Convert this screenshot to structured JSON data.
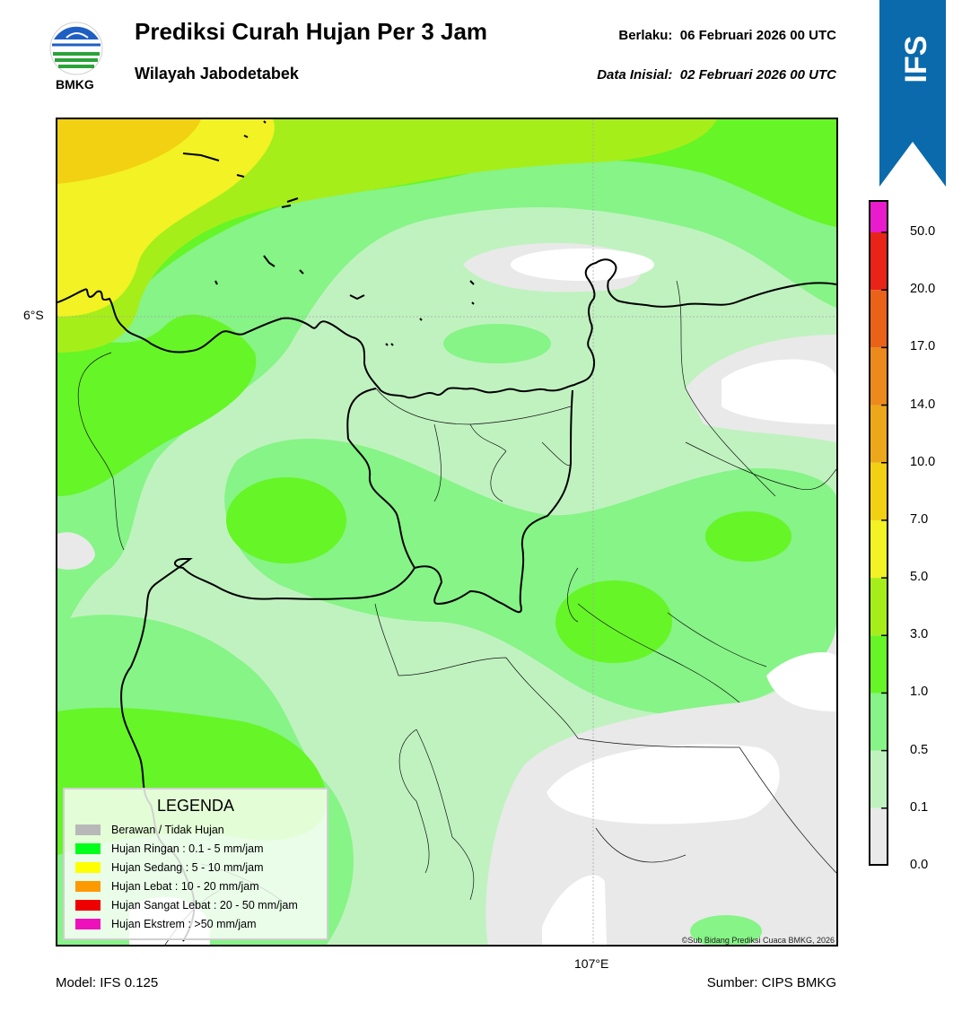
{
  "header": {
    "logo_text": "BMKG",
    "title": "Prediksi Curah Hujan Per 3 Jam",
    "subtitle": "Wilayah Jabodetabek",
    "valid_label": "Berlaku:",
    "valid_value": "06 Februari 2026 00 UTC",
    "initial_label": "Data Inisial:",
    "initial_value": "02 Februari 2026 00 UTC"
  },
  "badge": {
    "text": "IFS",
    "color": "#0a6aab"
  },
  "map": {
    "lat_label": "6°S",
    "lon_label": "107°E",
    "credit": "©Sub Bidang Prediksi Cuaca BMKG, 2026"
  },
  "legend": {
    "title": "LEGENDA",
    "items": [
      {
        "label": "Berawan / Tidak Hujan",
        "color": "#b8b8b8"
      },
      {
        "label": "Hujan Ringan : 0.1 - 5 mm/jam",
        "color": "#00ff1a"
      },
      {
        "label": "Hujan Sedang : 5 - 10 mm/jam",
        "color": "#ffff00"
      },
      {
        "label": "Hujan Lebat : 10 - 20 mm/jam",
        "color": "#ff9900"
      },
      {
        "label": "Hujan Sangat Lebat : 20 - 50 mm/jam",
        "color": "#ee0000"
      },
      {
        "label": "Hujan Ekstrem : >50 mm/jam",
        "color": "#ee11bb"
      }
    ]
  },
  "colorbar": {
    "ticks": [
      "0.0",
      "0.1",
      "0.5",
      "1.0",
      "3.0",
      "5.0",
      "7.0",
      "10.0",
      "14.0",
      "17.0",
      "20.0",
      "50.0"
    ],
    "colors": [
      "#e9e9e9",
      "#c0f2c0",
      "#86f486",
      "#66f526",
      "#a6ee1a",
      "#f2f224",
      "#f2d012",
      "#eca81a",
      "#ec8a1c",
      "#ea6218",
      "#e82418",
      "#e81ccc"
    ]
  },
  "footer": {
    "model": "Model: IFS 0.125",
    "source": "Sumber: CIPS BMKG"
  }
}
